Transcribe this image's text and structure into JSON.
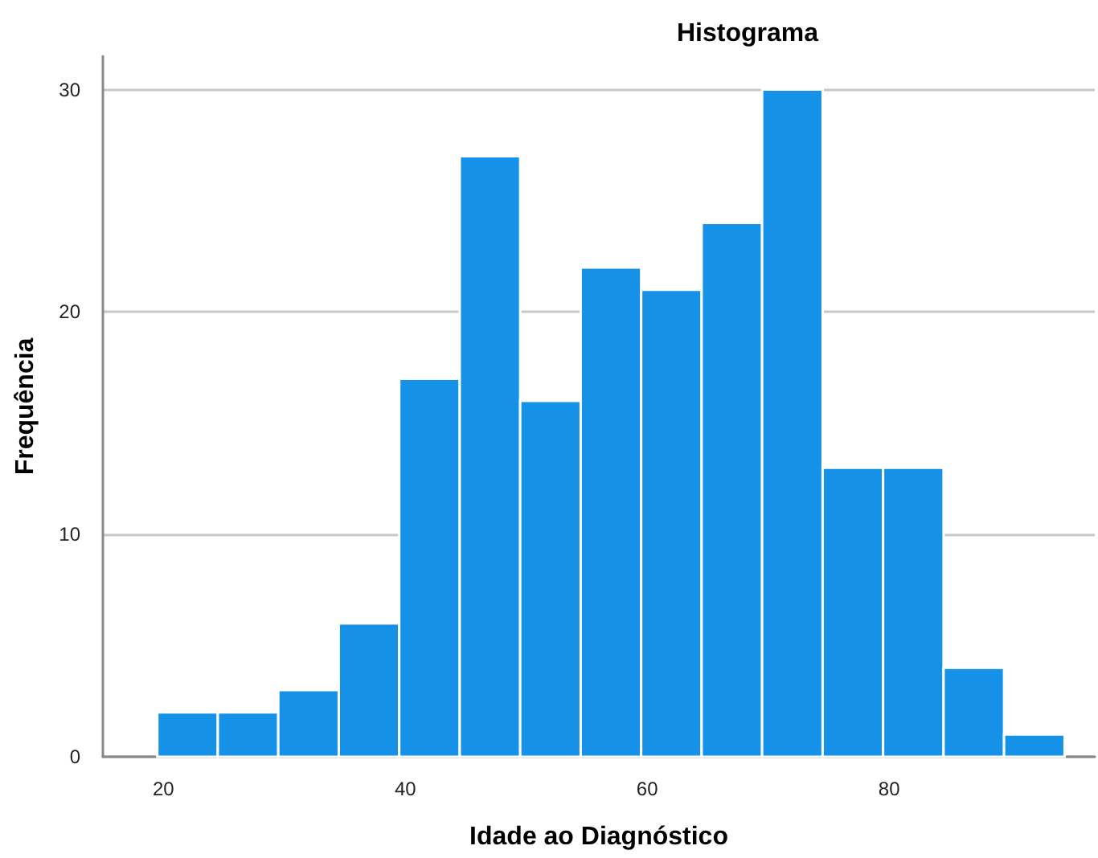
{
  "chart_data": {
    "type": "histogram",
    "title": "Histograma",
    "xlabel": "Idade ao Diagnóstico",
    "ylabel": "Frequência",
    "bins": [
      19.5,
      24.5,
      29.5,
      34.5,
      39.5,
      44.5,
      49.5,
      54.5,
      59.5,
      64.5,
      69.5,
      74.5,
      79.5,
      84.5,
      89.5,
      94.5
    ],
    "values": [
      2,
      2,
      3,
      6,
      17,
      27,
      16,
      22,
      21,
      24,
      30,
      13,
      13,
      4,
      1
    ],
    "color": "#1591e8",
    "xlim": [
      15,
      97
    ],
    "xticks": [
      20,
      40,
      60,
      80
    ],
    "ylim": [
      0,
      31.5
    ],
    "yticks": [
      0,
      10,
      20,
      30
    ],
    "grid": "y"
  }
}
